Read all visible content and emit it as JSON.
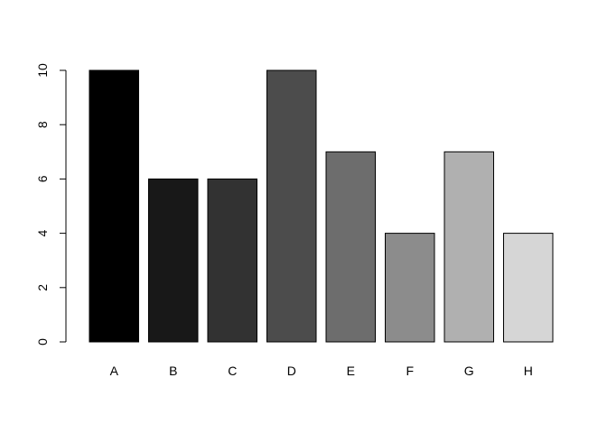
{
  "chart_data": {
    "type": "bar",
    "categories": [
      "A",
      "B",
      "C",
      "D",
      "E",
      "F",
      "G",
      "H"
    ],
    "values": [
      10,
      6,
      6,
      10,
      7,
      4,
      7,
      4
    ],
    "colors": [
      "#000000",
      "#181818",
      "#323232",
      "#4c4c4c",
      "#6d6d6d",
      "#8c8c8c",
      "#b0b0b0",
      "#d6d6d6"
    ],
    "bar_border_color": "#000000",
    "title": "",
    "xlabel": "",
    "ylabel": "",
    "ylim": [
      0,
      10
    ],
    "yticks": [
      0,
      2,
      4,
      6,
      8,
      10
    ],
    "grid": false,
    "legend": "none"
  }
}
